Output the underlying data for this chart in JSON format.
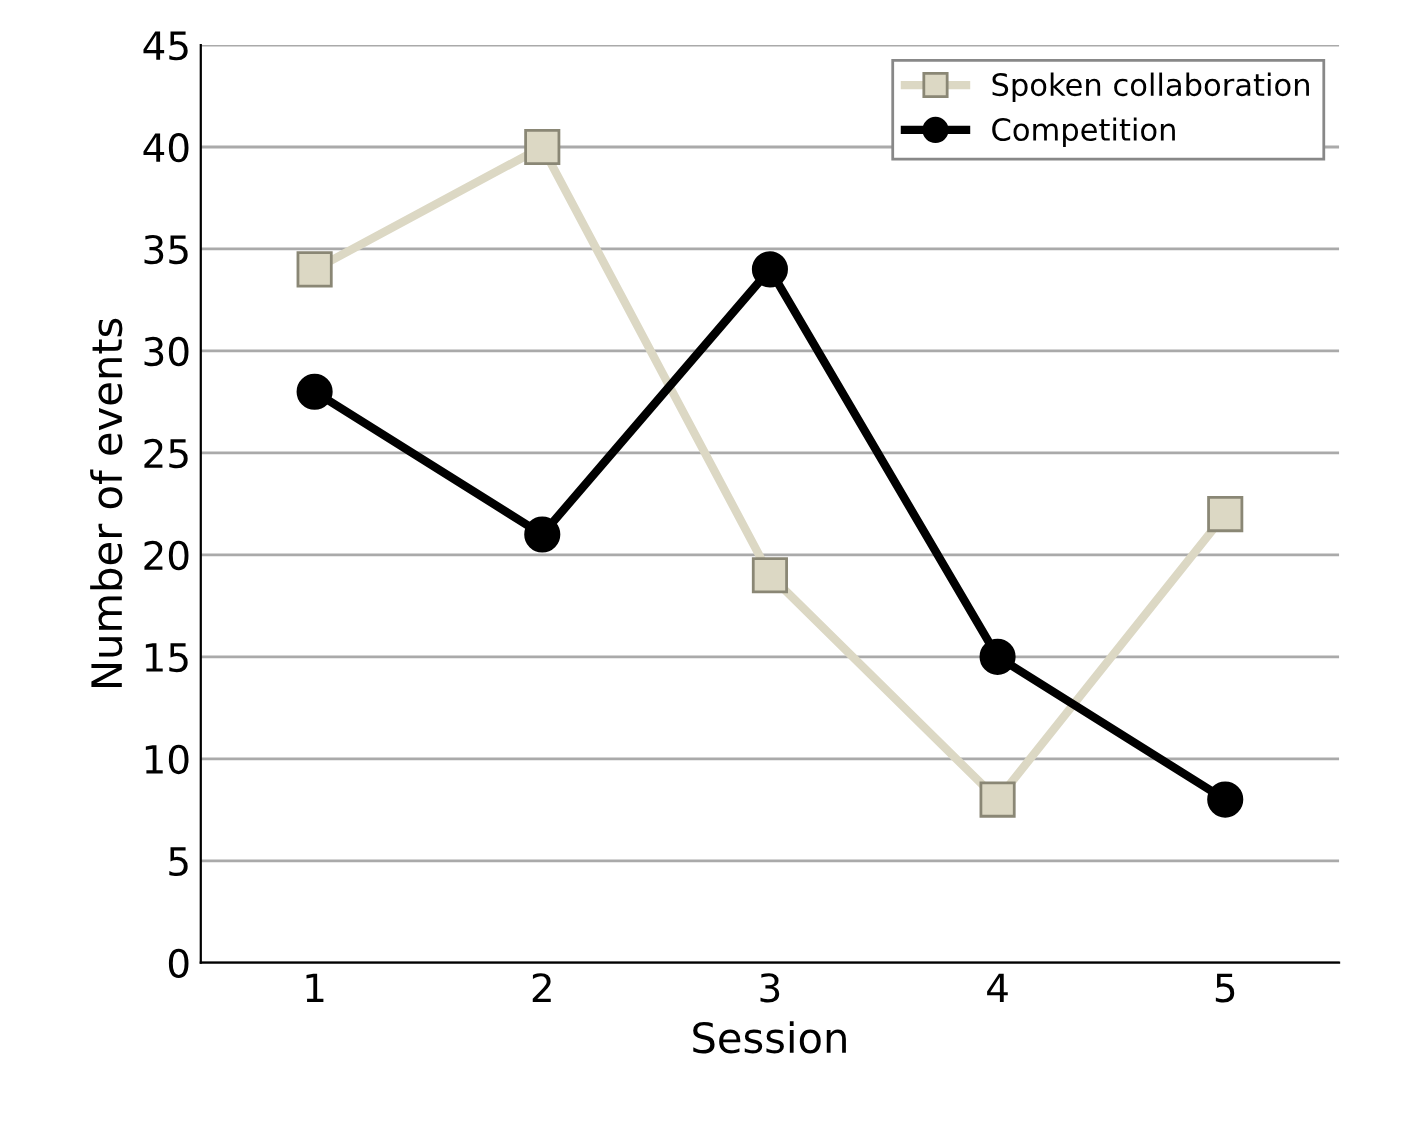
{
  "chart_data": {
    "type": "line",
    "xlabel": "Session",
    "ylabel": "Number of events",
    "categories": [
      "1",
      "2",
      "3",
      "4",
      "5"
    ],
    "series": [
      {
        "name": "Spoken collaboration",
        "color": "#dcd8c4",
        "marker": "square",
        "values": [
          34,
          40,
          19,
          8,
          22
        ]
      },
      {
        "name": "Competition",
        "color": "#000000",
        "marker": "circle",
        "values": [
          28,
          21,
          34,
          15,
          8
        ]
      }
    ],
    "ylim": [
      0,
      45
    ],
    "yticks": [
      0,
      5,
      10,
      15,
      20,
      25,
      30,
      35,
      40,
      45
    ],
    "grid": "y",
    "legend": "top right",
    "line_style": "solid"
  }
}
